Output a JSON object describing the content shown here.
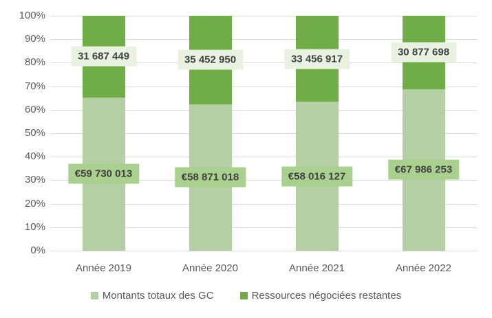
{
  "chart_data": {
    "type": "bar",
    "subtype": "stacked-100-percent",
    "title": "",
    "xlabel": "",
    "ylabel": "",
    "categories": [
      "Année 2019",
      "Année 2020",
      "Année 2021",
      "Année 2022"
    ],
    "series": [
      {
        "name": "Montants totaux des GC",
        "color": "#B3CFA3",
        "label_bg": "#A9D08E",
        "values": [
          59730013,
          58871018,
          58016127,
          67986253
        ],
        "labels": [
          "€59 730 013",
          "€58 871 018",
          "€58 016 127",
          "€67 986 253"
        ]
      },
      {
        "name": "Ressources négociées restantes",
        "color": "#70AD47",
        "label_bg": "#E9F2E0",
        "values": [
          31687449,
          35452950,
          33456917,
          30877698
        ],
        "labels": [
          "31 687 449",
          "35 452 950",
          "33 456 917",
          "30 877 698"
        ]
      }
    ],
    "y_axis": {
      "min": 0,
      "max": 1,
      "tick_step": 0.1,
      "tick_labels": [
        "0%",
        "10%",
        "20%",
        "30%",
        "40%",
        "50%",
        "60%",
        "70%",
        "80%",
        "90%",
        "100%"
      ]
    },
    "grid": true,
    "legend_position": "bottom",
    "colors": {
      "background": "#FFFFFF",
      "gridline": "#D9D9D9",
      "axis_text": "#595959",
      "data_label_text": "#404040"
    }
  }
}
